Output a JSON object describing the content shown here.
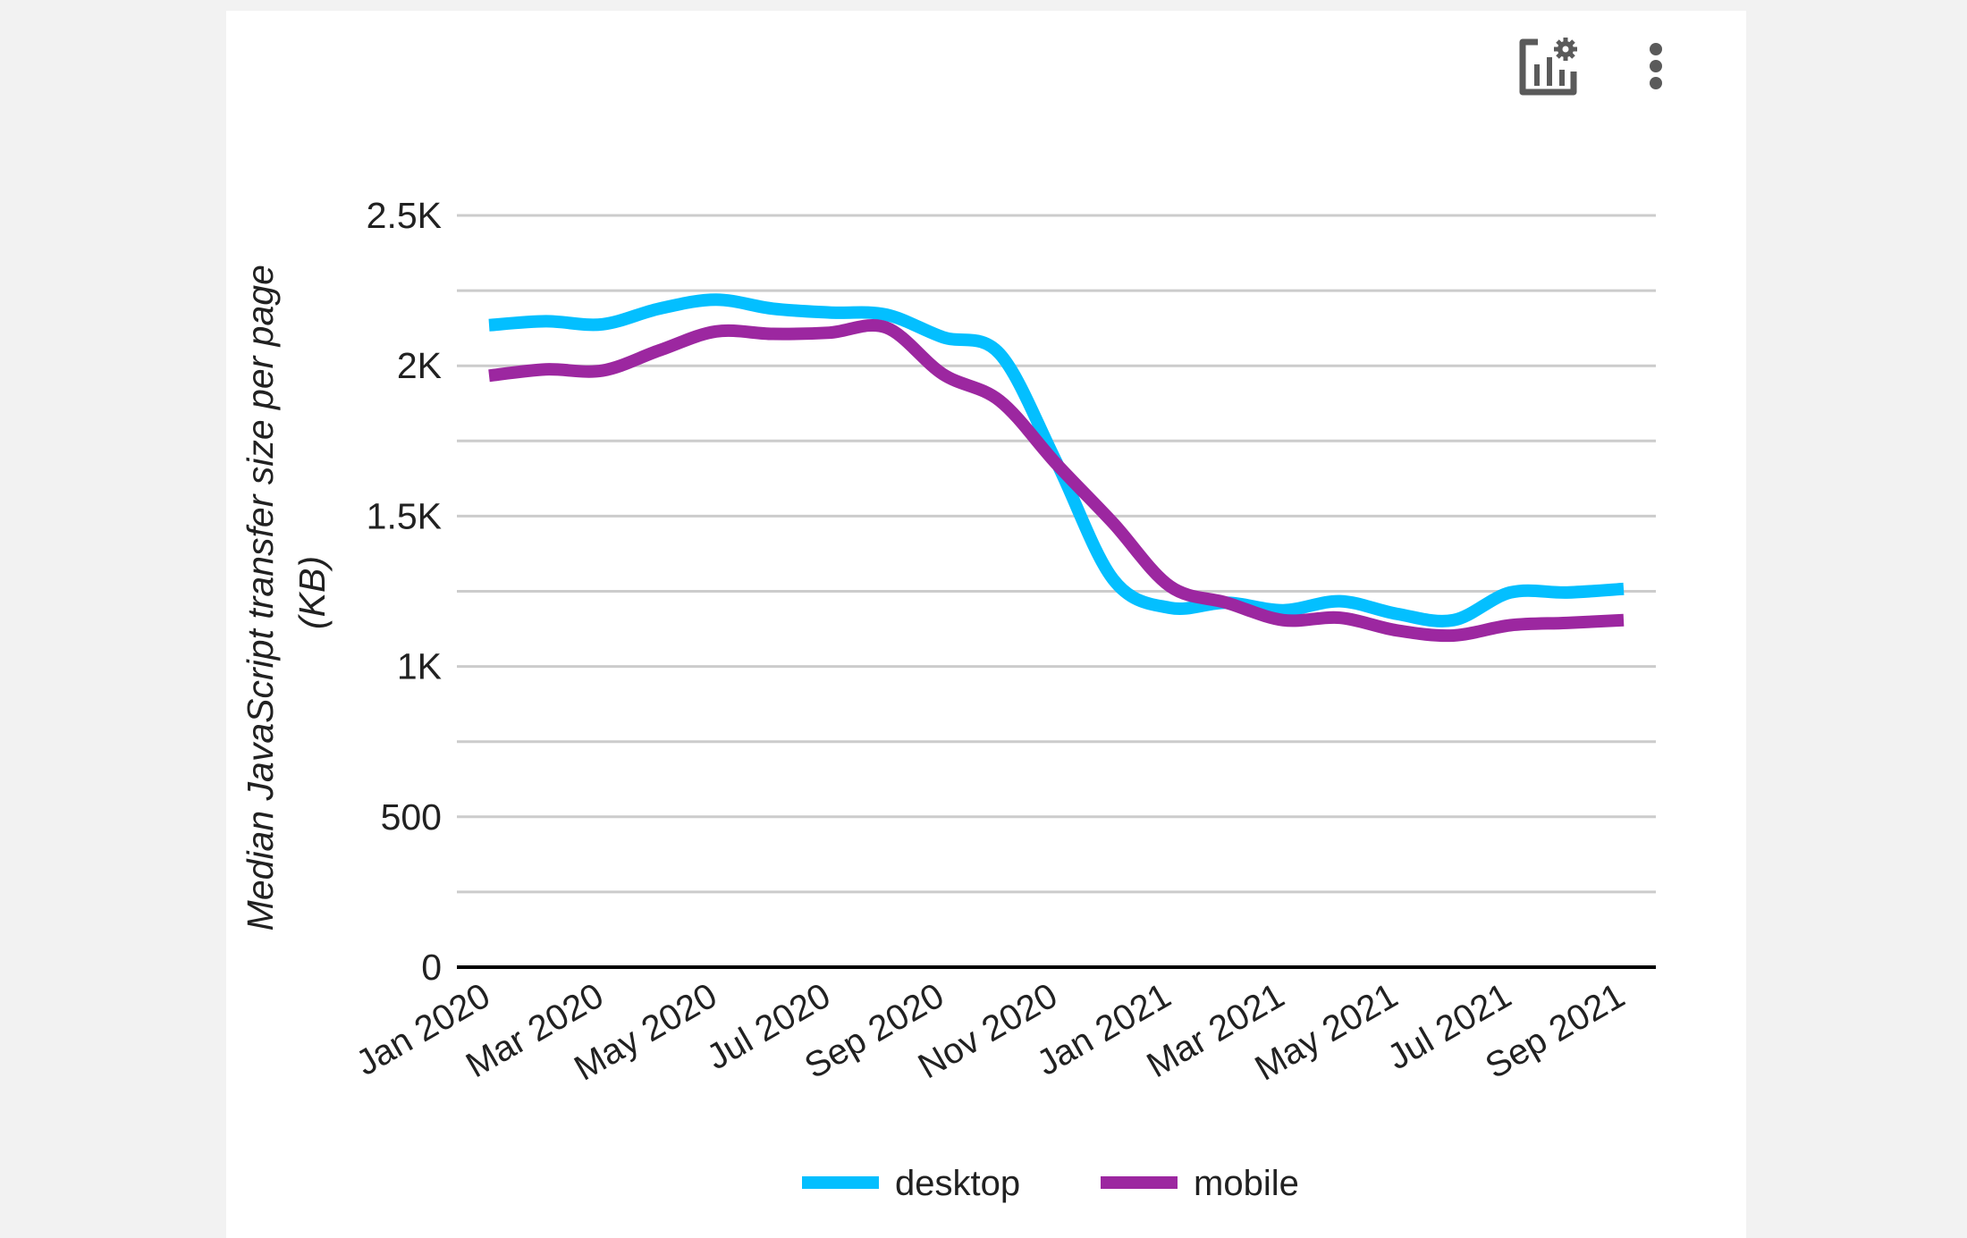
{
  "toolbar": {
    "icons": [
      "chart-settings-icon",
      "more-vertical-icon"
    ]
  },
  "chart_data": {
    "type": "line",
    "title": "",
    "xlabel": "",
    "ylabel_lines": [
      "Median JavaScript transfer size per page",
      "(KB)"
    ],
    "ylim": [
      0,
      2500
    ],
    "y_ticks": [
      0,
      250,
      500,
      750,
      1000,
      1250,
      1500,
      1750,
      2000,
      2250,
      2500
    ],
    "y_tick_labels": {
      "0": "0",
      "500": "500",
      "1000": "1K",
      "1500": "1.5K",
      "2000": "2K",
      "2500": "2.5K"
    },
    "grid": true,
    "legend": "bottom",
    "x": [
      "Jan 2020",
      "Feb 2020",
      "Mar 2020",
      "Apr 2020",
      "May 2020",
      "Jun 2020",
      "Jul 2020",
      "Aug 2020",
      "Sep 2020",
      "Oct 2020",
      "Nov 2020",
      "Dec 2020",
      "Jan 2021",
      "Feb 2021",
      "Mar 2021",
      "Apr 2021",
      "May 2021",
      "Jun 2021",
      "Jul 2021",
      "Aug 2021",
      "Sep 2021"
    ],
    "x_tick_labels": [
      "Jan 2020",
      "Mar 2020",
      "May 2020",
      "Jul 2020",
      "Sep 2020",
      "Nov 2020",
      "Jan 2021",
      "Mar 2021",
      "May 2021",
      "Jul 2021",
      "Sep 2021"
    ],
    "series": [
      {
        "name": "desktop",
        "color": "#03BFFF",
        "values": [
          2135,
          2148,
          2138,
          2190,
          2220,
          2190,
          2177,
          2170,
          2095,
          2040,
          1680,
          1290,
          1195,
          1212,
          1187,
          1217,
          1175,
          1154,
          1246,
          1246,
          1258
        ]
      },
      {
        "name": "mobile",
        "color": "#9C27A0",
        "values": [
          1967,
          1988,
          1984,
          2051,
          2114,
          2106,
          2110,
          2127,
          1972,
          1884,
          1674,
          1477,
          1267,
          1212,
          1154,
          1162,
          1120,
          1103,
          1137,
          1145,
          1154
        ]
      }
    ]
  }
}
